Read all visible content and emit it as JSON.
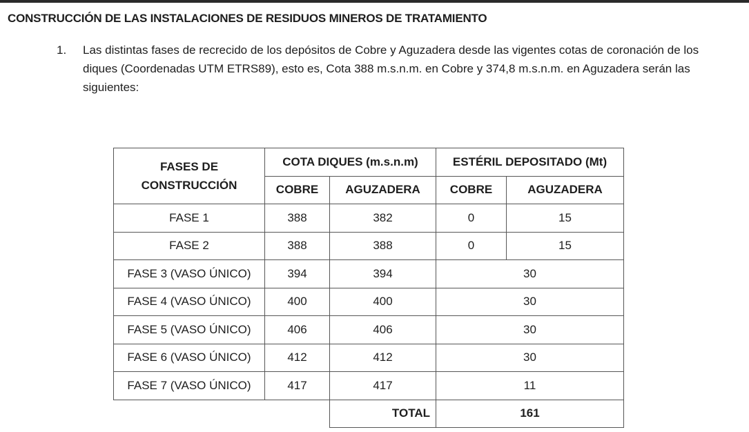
{
  "title": "CONSTRUCCIÓN DE LAS INSTALACIONES DE RESIDUOS MINEROS DE TRATAMIENTO",
  "item": {
    "number": "1.",
    "text": "Las distintas fases de recrecido de los depósitos de Cobre y Aguzadera desde las vigentes cotas de coronación de los diques (Coordenadas UTM ETRS89), esto es, Cota 388 m.s.n.m. en Cobre y 374,8 m.s.n.m. en Aguzadera serán las siguientes:"
  },
  "table": {
    "header_phase": "FASES DE CONSTRUCCIÓN",
    "header_cota": "COTA DIQUES (m.s.n.m)",
    "header_esteril": "ESTÉRIL DEPOSITADO (Mt)",
    "sub": [
      "COBRE",
      "AGUZADERA",
      "COBRE",
      "AGUZADERA"
    ],
    "rows": [
      {
        "fase": "FASE 1",
        "cota_cobre": "388",
        "cota_aguz": "382",
        "est_cobre": "0",
        "est_aguz": "15"
      },
      {
        "fase": "FASE 2",
        "cota_cobre": "388",
        "cota_aguz": "388",
        "est_cobre": "0",
        "est_aguz": "15"
      },
      {
        "fase": "FASE 3 (VASO ÚNICO)",
        "cota_cobre": "394",
        "cota_aguz": "394",
        "est": "30"
      },
      {
        "fase": "FASE 4 (VASO ÚNICO)",
        "cota_cobre": "400",
        "cota_aguz": "400",
        "est": "30"
      },
      {
        "fase": "FASE 5 (VASO ÚNICO)",
        "cota_cobre": "406",
        "cota_aguz": "406",
        "est": "30"
      },
      {
        "fase": "FASE 6 (VASO ÚNICO)",
        "cota_cobre": "412",
        "cota_aguz": "412",
        "est": "30"
      },
      {
        "fase": "FASE 7 (VASO ÚNICO)",
        "cota_cobre": "417",
        "cota_aguz": "417",
        "est": "11"
      }
    ],
    "total_label": "TOTAL",
    "total_value": "161"
  }
}
